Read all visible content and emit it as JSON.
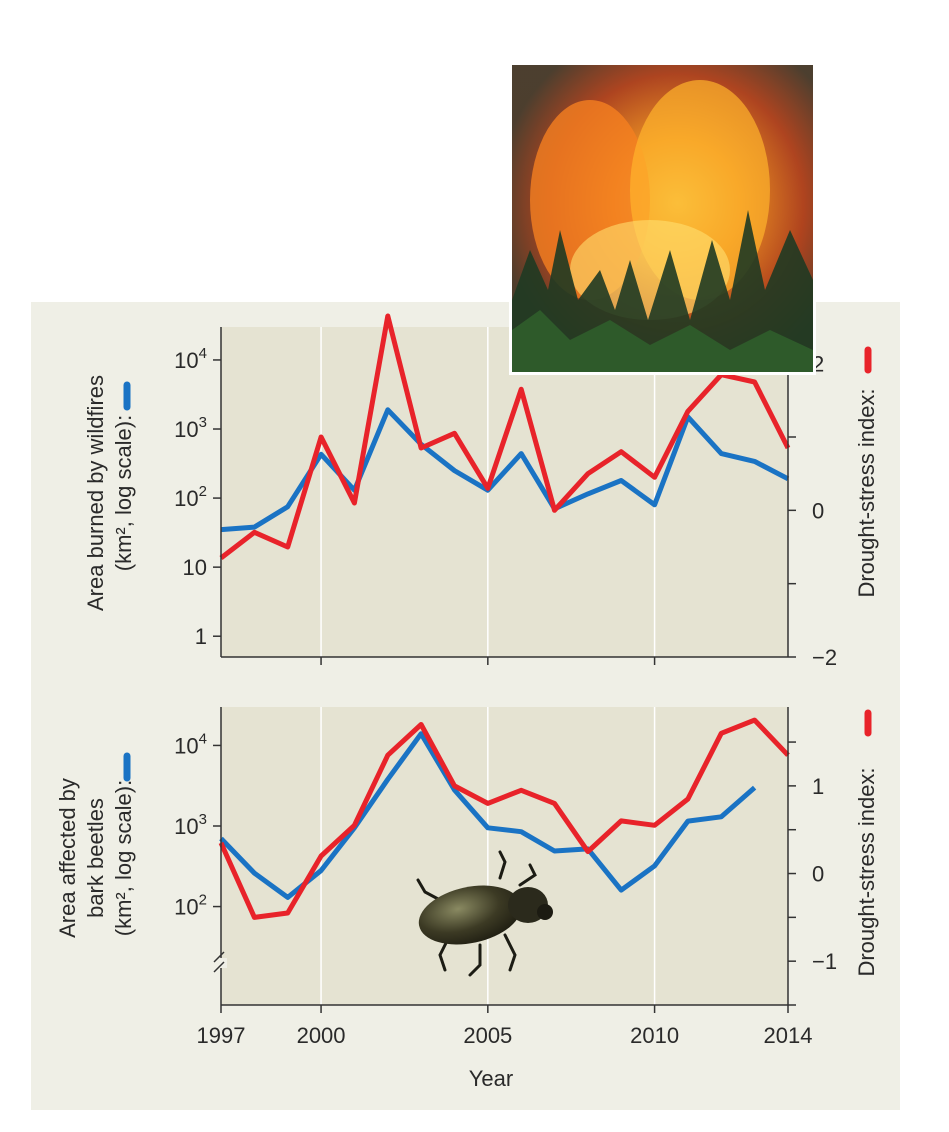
{
  "chart_data": [
    {
      "type": "line",
      "panel": "top",
      "y_left_label_lines": [
        "Area burned by wildfires",
        "(km², log scale):"
      ],
      "y_right_label": "Drought-stress index:",
      "x_ticks": [
        2000,
        2005,
        2010
      ],
      "xlim": [
        1997,
        2014
      ],
      "y_left_scale": "log",
      "y_left_ticks": [
        1,
        10,
        100,
        1000,
        10000
      ],
      "y_left_tick_labels": [
        {
          "base": "1",
          "exp": ""
        },
        {
          "base": "10",
          "exp": ""
        },
        {
          "base": "10",
          "exp": "2"
        },
        {
          "base": "10",
          "exp": "3"
        },
        {
          "base": "10",
          "exp": "4"
        }
      ],
      "y_left_lim": [
        0.5,
        30000
      ],
      "y_right_ticks": [
        -2,
        -1,
        0,
        1,
        2
      ],
      "y_right_tick_labels": [
        "−2",
        "",
        "0",
        "",
        "2"
      ],
      "y_right_lim": [
        -2,
        2.5
      ],
      "grid_x": [
        2000,
        2005,
        2010
      ],
      "series": [
        {
          "axis": "left",
          "color": "#1a73c4",
          "x": [
            1997,
            1998,
            1999,
            2000,
            2001,
            2002,
            2003,
            2004,
            2005,
            2006,
            2007,
            2008,
            2009,
            2010,
            2011,
            2012,
            2013,
            2014
          ],
          "y": [
            35,
            38,
            75,
            430,
            130,
            1900,
            600,
            250,
            130,
            440,
            70,
            115,
            180,
            80,
            1500,
            440,
            340,
            190
          ]
        },
        {
          "axis": "right",
          "color": "#e8232a",
          "x": [
            1997,
            1998,
            1999,
            2000,
            2001,
            2002,
            2003,
            2004,
            2005,
            2006,
            2007,
            2008,
            2009,
            2010,
            2011,
            2012,
            2013,
            2014
          ],
          "y": [
            -0.65,
            -0.3,
            -0.5,
            1.0,
            0.1,
            2.65,
            0.85,
            1.05,
            0.3,
            1.65,
            0.0,
            0.5,
            0.8,
            0.45,
            1.35,
            1.85,
            1.75,
            0.85
          ]
        }
      ]
    },
    {
      "type": "line",
      "panel": "bottom",
      "y_left_label_lines": [
        "Area affected by",
        "bark beetles",
        "(km², log scale):"
      ],
      "y_right_label": "Drought-stress index:",
      "x_label": "Year",
      "x_ticks": [
        1997,
        2000,
        2005,
        2010,
        2014
      ],
      "xlim": [
        1997,
        2014
      ],
      "y_left_scale": "log",
      "y_left_ticks": [
        100,
        1000,
        10000
      ],
      "y_left_tick_labels": [
        {
          "base": "10",
          "exp": "2"
        },
        {
          "base": "10",
          "exp": "3"
        },
        {
          "base": "10",
          "exp": "4"
        }
      ],
      "y_left_lim": [
        6,
        30000
      ],
      "y_left_axis_break": true,
      "y_right_ticks": [
        -1.5,
        -1,
        -0.5,
        0,
        0.5,
        1,
        1.5
      ],
      "y_right_tick_labels": [
        "",
        "−1",
        "",
        "0",
        "",
        "1",
        ""
      ],
      "y_right_lim": [
        -1.5,
        1.9
      ],
      "grid_x": [
        2000,
        2005,
        2010
      ],
      "series": [
        {
          "axis": "left",
          "color": "#1a73c4",
          "x": [
            1997,
            1998,
            1999,
            2000,
            2001,
            2002,
            2003,
            2004,
            2005,
            2006,
            2007,
            2008,
            2009,
            2010,
            2011,
            2012,
            2013
          ],
          "y": [
            700,
            260,
            130,
            280,
            950,
            3800,
            14000,
            2800,
            950,
            850,
            490,
            520,
            160,
            320,
            1150,
            1300,
            3000
          ]
        },
        {
          "axis": "right",
          "color": "#e8232a",
          "x": [
            1997,
            1998,
            1999,
            2000,
            2001,
            2002,
            2003,
            2004,
            2005,
            2006,
            2007,
            2008,
            2009,
            2010,
            2011,
            2012,
            2013,
            2014
          ],
          "y": [
            0.35,
            -0.5,
            -0.45,
            0.2,
            0.55,
            1.35,
            1.7,
            1.0,
            0.8,
            0.95,
            0.8,
            0.25,
            0.6,
            0.55,
            0.85,
            1.6,
            1.75,
            1.35
          ]
        }
      ]
    }
  ]
}
